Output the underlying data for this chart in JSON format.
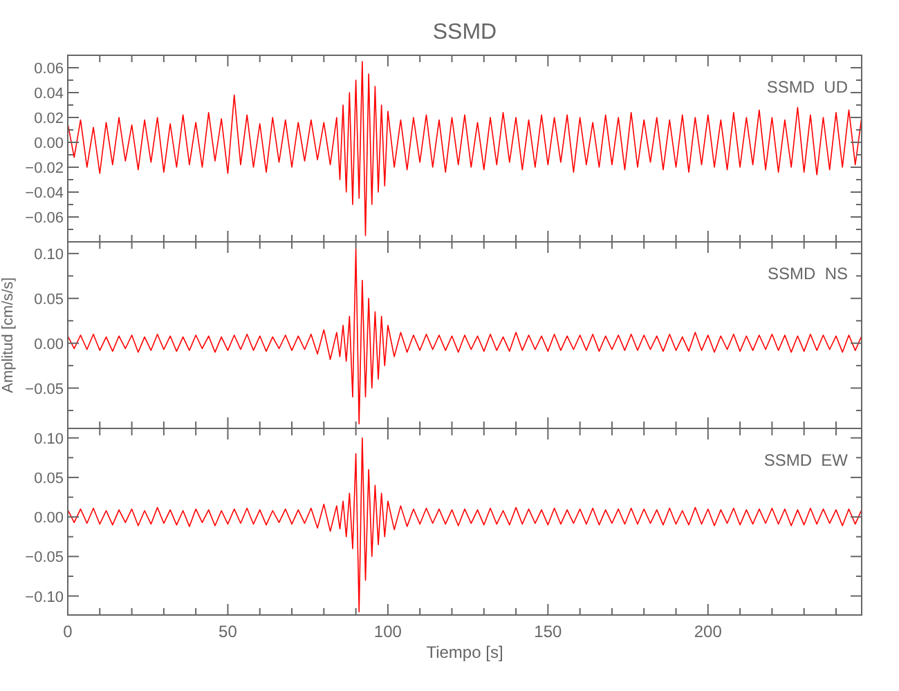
{
  "chart_data": [
    {
      "type": "line",
      "title": "SSMD",
      "annotations": [
        "SSMD  UD"
      ],
      "tick_labels": "y",
      "marker": "none",
      "xlim": [
        0,
        248
      ],
      "ylim": [
        -0.08,
        0.07
      ],
      "yticks": [
        {
          "value": -0.07,
          "label": null
        },
        {
          "value": -0.06,
          "label": "−0.06"
        },
        {
          "value": -0.05,
          "label": null
        },
        {
          "value": -0.04,
          "label": "−0.04"
        },
        {
          "value": -0.03,
          "label": null
        },
        {
          "value": -0.02,
          "label": "−0.02"
        },
        {
          "value": -0.01,
          "label": null
        },
        {
          "value": 0,
          "label": "0.00"
        },
        {
          "value": 0.01,
          "label": null
        },
        {
          "value": 0.02,
          "label": "0.02"
        },
        {
          "value": 0.03,
          "label": null
        },
        {
          "value": 0.04,
          "label": "0.04"
        },
        {
          "value": 0.05,
          "label": null
        },
        {
          "value": 0.06,
          "label": "0.06"
        }
      ],
      "x": [
        0,
        2,
        4,
        6,
        8,
        10,
        12,
        14,
        16,
        18,
        20,
        22,
        24,
        26,
        28,
        30,
        32,
        34,
        36,
        38,
        40,
        42,
        44,
        46,
        48,
        50,
        52,
        54,
        56,
        58,
        60,
        62,
        64,
        66,
        68,
        70,
        72,
        74,
        76,
        78,
        80,
        82,
        84,
        85,
        86,
        87,
        88,
        89,
        90,
        91,
        92,
        93,
        94,
        95,
        96,
        97,
        98,
        99,
        100,
        102,
        104,
        106,
        108,
        110,
        112,
        114,
        116,
        118,
        120,
        122,
        124,
        126,
        128,
        130,
        132,
        134,
        136,
        138,
        140,
        142,
        144,
        146,
        148,
        150,
        152,
        154,
        156,
        158,
        160,
        162,
        164,
        166,
        168,
        170,
        172,
        174,
        176,
        178,
        180,
        182,
        184,
        186,
        188,
        190,
        192,
        194,
        196,
        198,
        200,
        202,
        204,
        206,
        208,
        210,
        212,
        214,
        216,
        218,
        220,
        222,
        224,
        226,
        228,
        230,
        232,
        234,
        236,
        238,
        240,
        242,
        244,
        246,
        248
      ],
      "series": [
        {
          "color": "#ff0000",
          "values": [
            0.015,
            -0.012,
            0.018,
            -0.02,
            0.012,
            -0.025,
            0.016,
            -0.018,
            0.02,
            -0.015,
            0.014,
            -0.022,
            0.018,
            -0.016,
            0.02,
            -0.024,
            0.015,
            -0.02,
            0.022,
            -0.018,
            0.016,
            -0.02,
            0.024,
            -0.015,
            0.019,
            -0.025,
            0.038,
            -0.018,
            0.022,
            -0.02,
            0.015,
            -0.024,
            0.02,
            -0.016,
            0.018,
            -0.02,
            0.016,
            -0.015,
            0.018,
            -0.014,
            0.016,
            -0.018,
            0.02,
            -0.03,
            0.03,
            -0.04,
            0.04,
            -0.05,
            0.05,
            -0.045,
            0.065,
            -0.075,
            0.055,
            -0.05,
            0.045,
            -0.04,
            0.03,
            -0.035,
            0.025,
            -0.02,
            0.018,
            -0.022,
            0.02,
            -0.016,
            0.022,
            -0.02,
            0.018,
            -0.024,
            0.02,
            -0.018,
            0.022,
            -0.02,
            0.016,
            -0.022,
            0.02,
            -0.018,
            0.024,
            -0.016,
            0.02,
            -0.022,
            0.018,
            -0.02,
            0.022,
            -0.018,
            0.02,
            -0.016,
            0.022,
            -0.024,
            0.02,
            -0.018,
            0.016,
            -0.02,
            0.022,
            -0.018,
            0.02,
            -0.022,
            0.024,
            -0.02,
            0.018,
            -0.016,
            0.02,
            -0.022,
            0.018,
            -0.02,
            0.022,
            -0.024,
            0.02,
            -0.018,
            0.022,
            -0.02,
            0.018,
            -0.022,
            0.024,
            -0.02,
            0.02,
            -0.018,
            0.026,
            -0.022,
            0.02,
            -0.024,
            0.018,
            -0.02,
            0.028,
            -0.024,
            0.022,
            -0.026,
            0.02,
            -0.022,
            0.024,
            -0.02,
            0.026,
            -0.018,
            0.02
          ]
        }
      ]
    },
    {
      "type": "line",
      "ylabel": "Amplitud [cm/s/s]",
      "annotations": [
        "SSMD  NS"
      ],
      "tick_labels": "y",
      "marker": "none",
      "xlim": [
        0,
        248
      ],
      "ylim": [
        -0.095,
        0.113
      ],
      "yticks": [
        {
          "value": -0.075,
          "label": null
        },
        {
          "value": -0.05,
          "label": "−0.05"
        },
        {
          "value": -0.025,
          "label": null
        },
        {
          "value": 0,
          "label": "0.00"
        },
        {
          "value": 0.025,
          "label": null
        },
        {
          "value": 0.05,
          "label": "0.05"
        },
        {
          "value": 0.075,
          "label": null
        },
        {
          "value": 0.1,
          "label": "0.10"
        }
      ],
      "x": [
        0,
        2,
        4,
        6,
        8,
        10,
        12,
        14,
        16,
        18,
        20,
        22,
        24,
        26,
        28,
        30,
        32,
        34,
        36,
        38,
        40,
        42,
        44,
        46,
        48,
        50,
        52,
        54,
        56,
        58,
        60,
        62,
        64,
        66,
        68,
        70,
        72,
        74,
        76,
        78,
        80,
        82,
        84,
        85,
        86,
        87,
        88,
        89,
        90,
        91,
        92,
        93,
        94,
        95,
        96,
        97,
        98,
        99,
        100,
        102,
        104,
        106,
        108,
        110,
        112,
        114,
        116,
        118,
        120,
        122,
        124,
        126,
        128,
        130,
        132,
        134,
        136,
        138,
        140,
        142,
        144,
        146,
        148,
        150,
        152,
        154,
        156,
        158,
        160,
        162,
        164,
        166,
        168,
        170,
        172,
        174,
        176,
        178,
        180,
        182,
        184,
        186,
        188,
        190,
        192,
        194,
        196,
        198,
        200,
        202,
        204,
        206,
        208,
        210,
        212,
        214,
        216,
        218,
        220,
        222,
        224,
        226,
        228,
        230,
        232,
        234,
        236,
        238,
        240,
        242,
        244,
        246,
        248
      ],
      "series": [
        {
          "color": "#ff0000",
          "values": [
            0.008,
            -0.006,
            0.009,
            -0.007,
            0.01,
            -0.008,
            0.007,
            -0.009,
            0.008,
            -0.006,
            0.009,
            -0.01,
            0.007,
            -0.008,
            0.01,
            -0.007,
            0.008,
            -0.009,
            0.007,
            -0.008,
            0.009,
            -0.006,
            0.008,
            -0.01,
            0.007,
            -0.008,
            0.009,
            -0.007,
            0.01,
            -0.008,
            0.008,
            -0.009,
            0.007,
            -0.006,
            0.009,
            -0.008,
            0.008,
            -0.007,
            0.01,
            -0.012,
            0.015,
            -0.018,
            0.012,
            -0.015,
            0.02,
            -0.02,
            0.03,
            -0.06,
            0.105,
            -0.09,
            0.07,
            -0.06,
            0.05,
            -0.05,
            0.035,
            -0.04,
            0.03,
            -0.025,
            0.02,
            -0.015,
            0.012,
            -0.01,
            0.009,
            -0.008,
            0.01,
            -0.007,
            0.009,
            -0.008,
            0.008,
            -0.01,
            0.009,
            -0.007,
            0.008,
            -0.009,
            0.01,
            -0.008,
            0.007,
            -0.009,
            0.012,
            -0.008,
            0.009,
            -0.007,
            0.008,
            -0.009,
            0.01,
            -0.008,
            0.008,
            -0.007,
            0.009,
            -0.008,
            0.01,
            -0.009,
            0.008,
            -0.007,
            0.009,
            -0.008,
            0.01,
            -0.008,
            0.009,
            -0.007,
            0.008,
            -0.009,
            0.01,
            -0.008,
            0.007,
            -0.009,
            0.012,
            -0.008,
            0.009,
            -0.01,
            0.008,
            -0.007,
            0.01,
            -0.009,
            0.008,
            -0.008,
            0.009,
            -0.007,
            0.01,
            -0.008,
            0.009,
            -0.01,
            0.008,
            -0.009,
            0.01,
            -0.008,
            0.009,
            -0.007,
            0.008,
            -0.01,
            0.009,
            -0.008,
            0.008
          ]
        }
      ]
    },
    {
      "type": "line",
      "xlabel": "Tiempo [s]",
      "annotations": [
        "SSMD  EW"
      ],
      "marker": "none",
      "xlim": [
        0,
        248
      ],
      "ylim": [
        -0.124,
        0.112
      ],
      "xticks": [
        {
          "value": 0,
          "label": "0"
        },
        {
          "value": 10,
          "label": null
        },
        {
          "value": 20,
          "label": null
        },
        {
          "value": 30,
          "label": null
        },
        {
          "value": 40,
          "label": null
        },
        {
          "value": 50,
          "label": "50"
        },
        {
          "value": 60,
          "label": null
        },
        {
          "value": 70,
          "label": null
        },
        {
          "value": 80,
          "label": null
        },
        {
          "value": 90,
          "label": null
        },
        {
          "value": 100,
          "label": "100"
        },
        {
          "value": 110,
          "label": null
        },
        {
          "value": 120,
          "label": null
        },
        {
          "value": 130,
          "label": null
        },
        {
          "value": 140,
          "label": null
        },
        {
          "value": 150,
          "label": "150"
        },
        {
          "value": 160,
          "label": null
        },
        {
          "value": 170,
          "label": null
        },
        {
          "value": 180,
          "label": null
        },
        {
          "value": 190,
          "label": null
        },
        {
          "value": 200,
          "label": "200"
        },
        {
          "value": 210,
          "label": null
        },
        {
          "value": 220,
          "label": null
        },
        {
          "value": 230,
          "label": null
        },
        {
          "value": 240,
          "label": null
        }
      ],
      "yticks": [
        {
          "value": -0.1,
          "label": "−0.10"
        },
        {
          "value": -0.075,
          "label": null
        },
        {
          "value": -0.05,
          "label": "−0.05"
        },
        {
          "value": -0.025,
          "label": null
        },
        {
          "value": 0,
          "label": "0.00"
        },
        {
          "value": 0.025,
          "label": null
        },
        {
          "value": 0.05,
          "label": "0.05"
        },
        {
          "value": 0.075,
          "label": null
        },
        {
          "value": 0.1,
          "label": "0.10"
        }
      ],
      "x": [
        0,
        2,
        4,
        6,
        8,
        10,
        12,
        14,
        16,
        18,
        20,
        22,
        24,
        26,
        28,
        30,
        32,
        34,
        36,
        38,
        40,
        42,
        44,
        46,
        48,
        50,
        52,
        54,
        56,
        58,
        60,
        62,
        64,
        66,
        68,
        70,
        72,
        74,
        76,
        78,
        80,
        82,
        84,
        85,
        86,
        87,
        88,
        89,
        90,
        91,
        92,
        93,
        94,
        95,
        96,
        97,
        98,
        99,
        100,
        102,
        104,
        106,
        108,
        110,
        112,
        114,
        116,
        118,
        120,
        122,
        124,
        126,
        128,
        130,
        132,
        134,
        136,
        138,
        140,
        142,
        144,
        146,
        148,
        150,
        152,
        154,
        156,
        158,
        160,
        162,
        164,
        166,
        168,
        170,
        172,
        174,
        176,
        178,
        180,
        182,
        184,
        186,
        188,
        190,
        192,
        194,
        196,
        198,
        200,
        202,
        204,
        206,
        208,
        210,
        212,
        214,
        216,
        218,
        220,
        222,
        224,
        226,
        228,
        230,
        232,
        234,
        236,
        238,
        240,
        242,
        244,
        246,
        248
      ],
      "series": [
        {
          "color": "#ff0000",
          "values": [
            0.009,
            -0.007,
            0.01,
            -0.008,
            0.011,
            -0.009,
            0.008,
            -0.01,
            0.009,
            -0.007,
            0.01,
            -0.011,
            0.008,
            -0.009,
            0.012,
            -0.008,
            0.009,
            -0.01,
            0.008,
            -0.012,
            0.01,
            -0.007,
            0.009,
            -0.011,
            0.008,
            -0.009,
            0.01,
            -0.008,
            0.011,
            -0.009,
            0.009,
            -0.01,
            0.008,
            -0.007,
            0.01,
            -0.009,
            0.009,
            -0.008,
            0.011,
            -0.014,
            0.016,
            -0.018,
            0.014,
            -0.015,
            0.02,
            -0.025,
            0.03,
            -0.04,
            0.08,
            -0.12,
            0.1,
            -0.08,
            0.06,
            -0.05,
            0.04,
            -0.035,
            0.03,
            -0.025,
            0.02,
            -0.016,
            0.014,
            -0.012,
            0.01,
            -0.009,
            0.011,
            -0.008,
            0.01,
            -0.009,
            0.009,
            -0.011,
            0.01,
            -0.008,
            0.009,
            -0.01,
            0.011,
            -0.009,
            0.008,
            -0.01,
            0.012,
            -0.009,
            0.01,
            -0.008,
            0.009,
            -0.01,
            0.011,
            -0.009,
            0.009,
            -0.008,
            0.01,
            -0.009,
            0.011,
            -0.01,
            0.009,
            -0.008,
            0.01,
            -0.009,
            0.011,
            -0.009,
            0.01,
            -0.008,
            0.009,
            -0.01,
            0.011,
            -0.009,
            0.008,
            -0.01,
            0.012,
            -0.009,
            0.01,
            -0.011,
            0.009,
            -0.008,
            0.011,
            -0.01,
            0.009,
            -0.009,
            0.01,
            -0.008,
            0.011,
            -0.009,
            0.01,
            -0.011,
            0.009,
            -0.01,
            0.011,
            -0.009,
            0.01,
            -0.008,
            0.009,
            -0.011,
            0.01,
            -0.009,
            0.009
          ]
        }
      ]
    }
  ]
}
